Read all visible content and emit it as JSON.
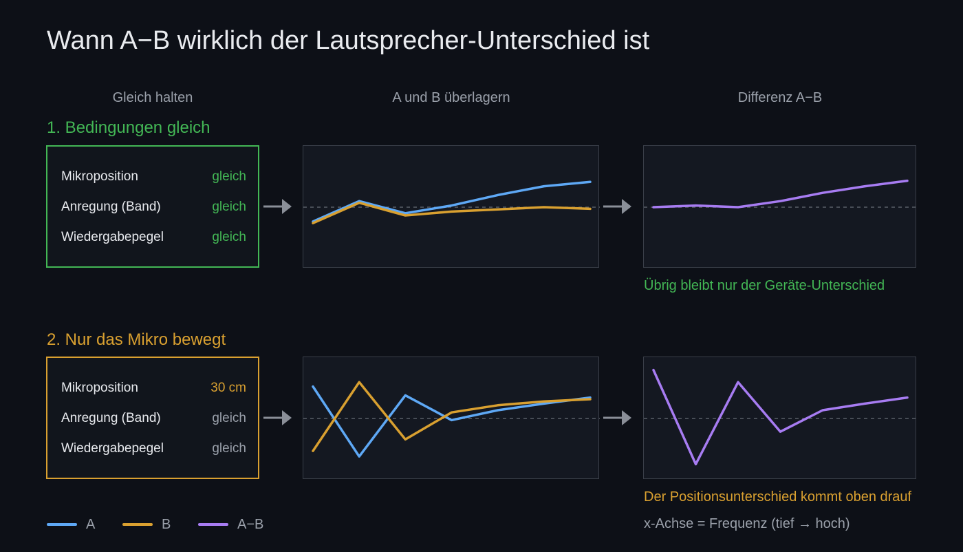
{
  "title": "Wann A−B wirklich der Lautsprecher-Unterschied ist",
  "columns": {
    "hold": "Gleich halten",
    "overlay": "A und B überlagern",
    "diff": "Differenz A−B"
  },
  "colors": {
    "A": "#5ea8f5",
    "B": "#d9a030",
    "diff": "#a77cf2",
    "green": "#43b755",
    "orange": "#d9a030",
    "muted": "#9aa0aa"
  },
  "scenarios": [
    {
      "label": "1. Bedingungen gleich",
      "conditions": [
        {
          "key": "Mikroposition",
          "value": "gleich"
        },
        {
          "key": "Anregung (Band)",
          "value": "gleich"
        },
        {
          "key": "Wiedergabepegel",
          "value": "gleich"
        }
      ],
      "caption": "Übrig bleibt nur der Geräte-Unterschied",
      "chart_data": {
        "type": "line",
        "x": [
          1,
          2,
          3,
          4,
          5,
          6,
          7
        ],
        "ylim": [
          -1,
          1
        ],
        "series": [
          {
            "name": "A",
            "values": [
              -0.26,
              0.11,
              -0.11,
              0.03,
              0.22,
              0.38,
              0.46
            ]
          },
          {
            "name": "B",
            "values": [
              -0.29,
              0.08,
              -0.15,
              -0.08,
              -0.04,
              0.0,
              -0.03
            ]
          }
        ],
        "diff": [
          0.0,
          0.03,
          0.0,
          0.11,
          0.26,
          0.38,
          0.48
        ]
      }
    },
    {
      "label": "2. Nur das Mikro bewegt",
      "conditions": [
        {
          "key": "Mikroposition",
          "value": "30 cm"
        },
        {
          "key": "Anregung (Band)",
          "value": "gleich"
        },
        {
          "key": "Wiedergabepegel",
          "value": "gleich"
        }
      ],
      "caption": "Der Positionsunterschied kommt oben drauf",
      "chart_data": {
        "type": "line",
        "x": [
          1,
          2,
          3,
          4,
          5,
          6,
          7
        ],
        "ylim": [
          -1,
          1
        ],
        "series": [
          {
            "name": "A",
            "values": [
              0.58,
              -0.69,
              0.42,
              -0.03,
              0.15,
              0.27,
              0.38
            ]
          },
          {
            "name": "B",
            "values": [
              -0.59,
              0.66,
              -0.38,
              0.11,
              0.24,
              0.31,
              0.35
            ]
          }
        ],
        "diff": [
          0.88,
          -0.83,
          0.66,
          -0.24,
          0.15,
          0.27,
          0.38
        ]
      }
    }
  ],
  "legend": [
    {
      "label": "A"
    },
    {
      "label": "B"
    },
    {
      "label": "A−B"
    }
  ],
  "note": "x-Achse = Frequenz (tief → hoch)"
}
